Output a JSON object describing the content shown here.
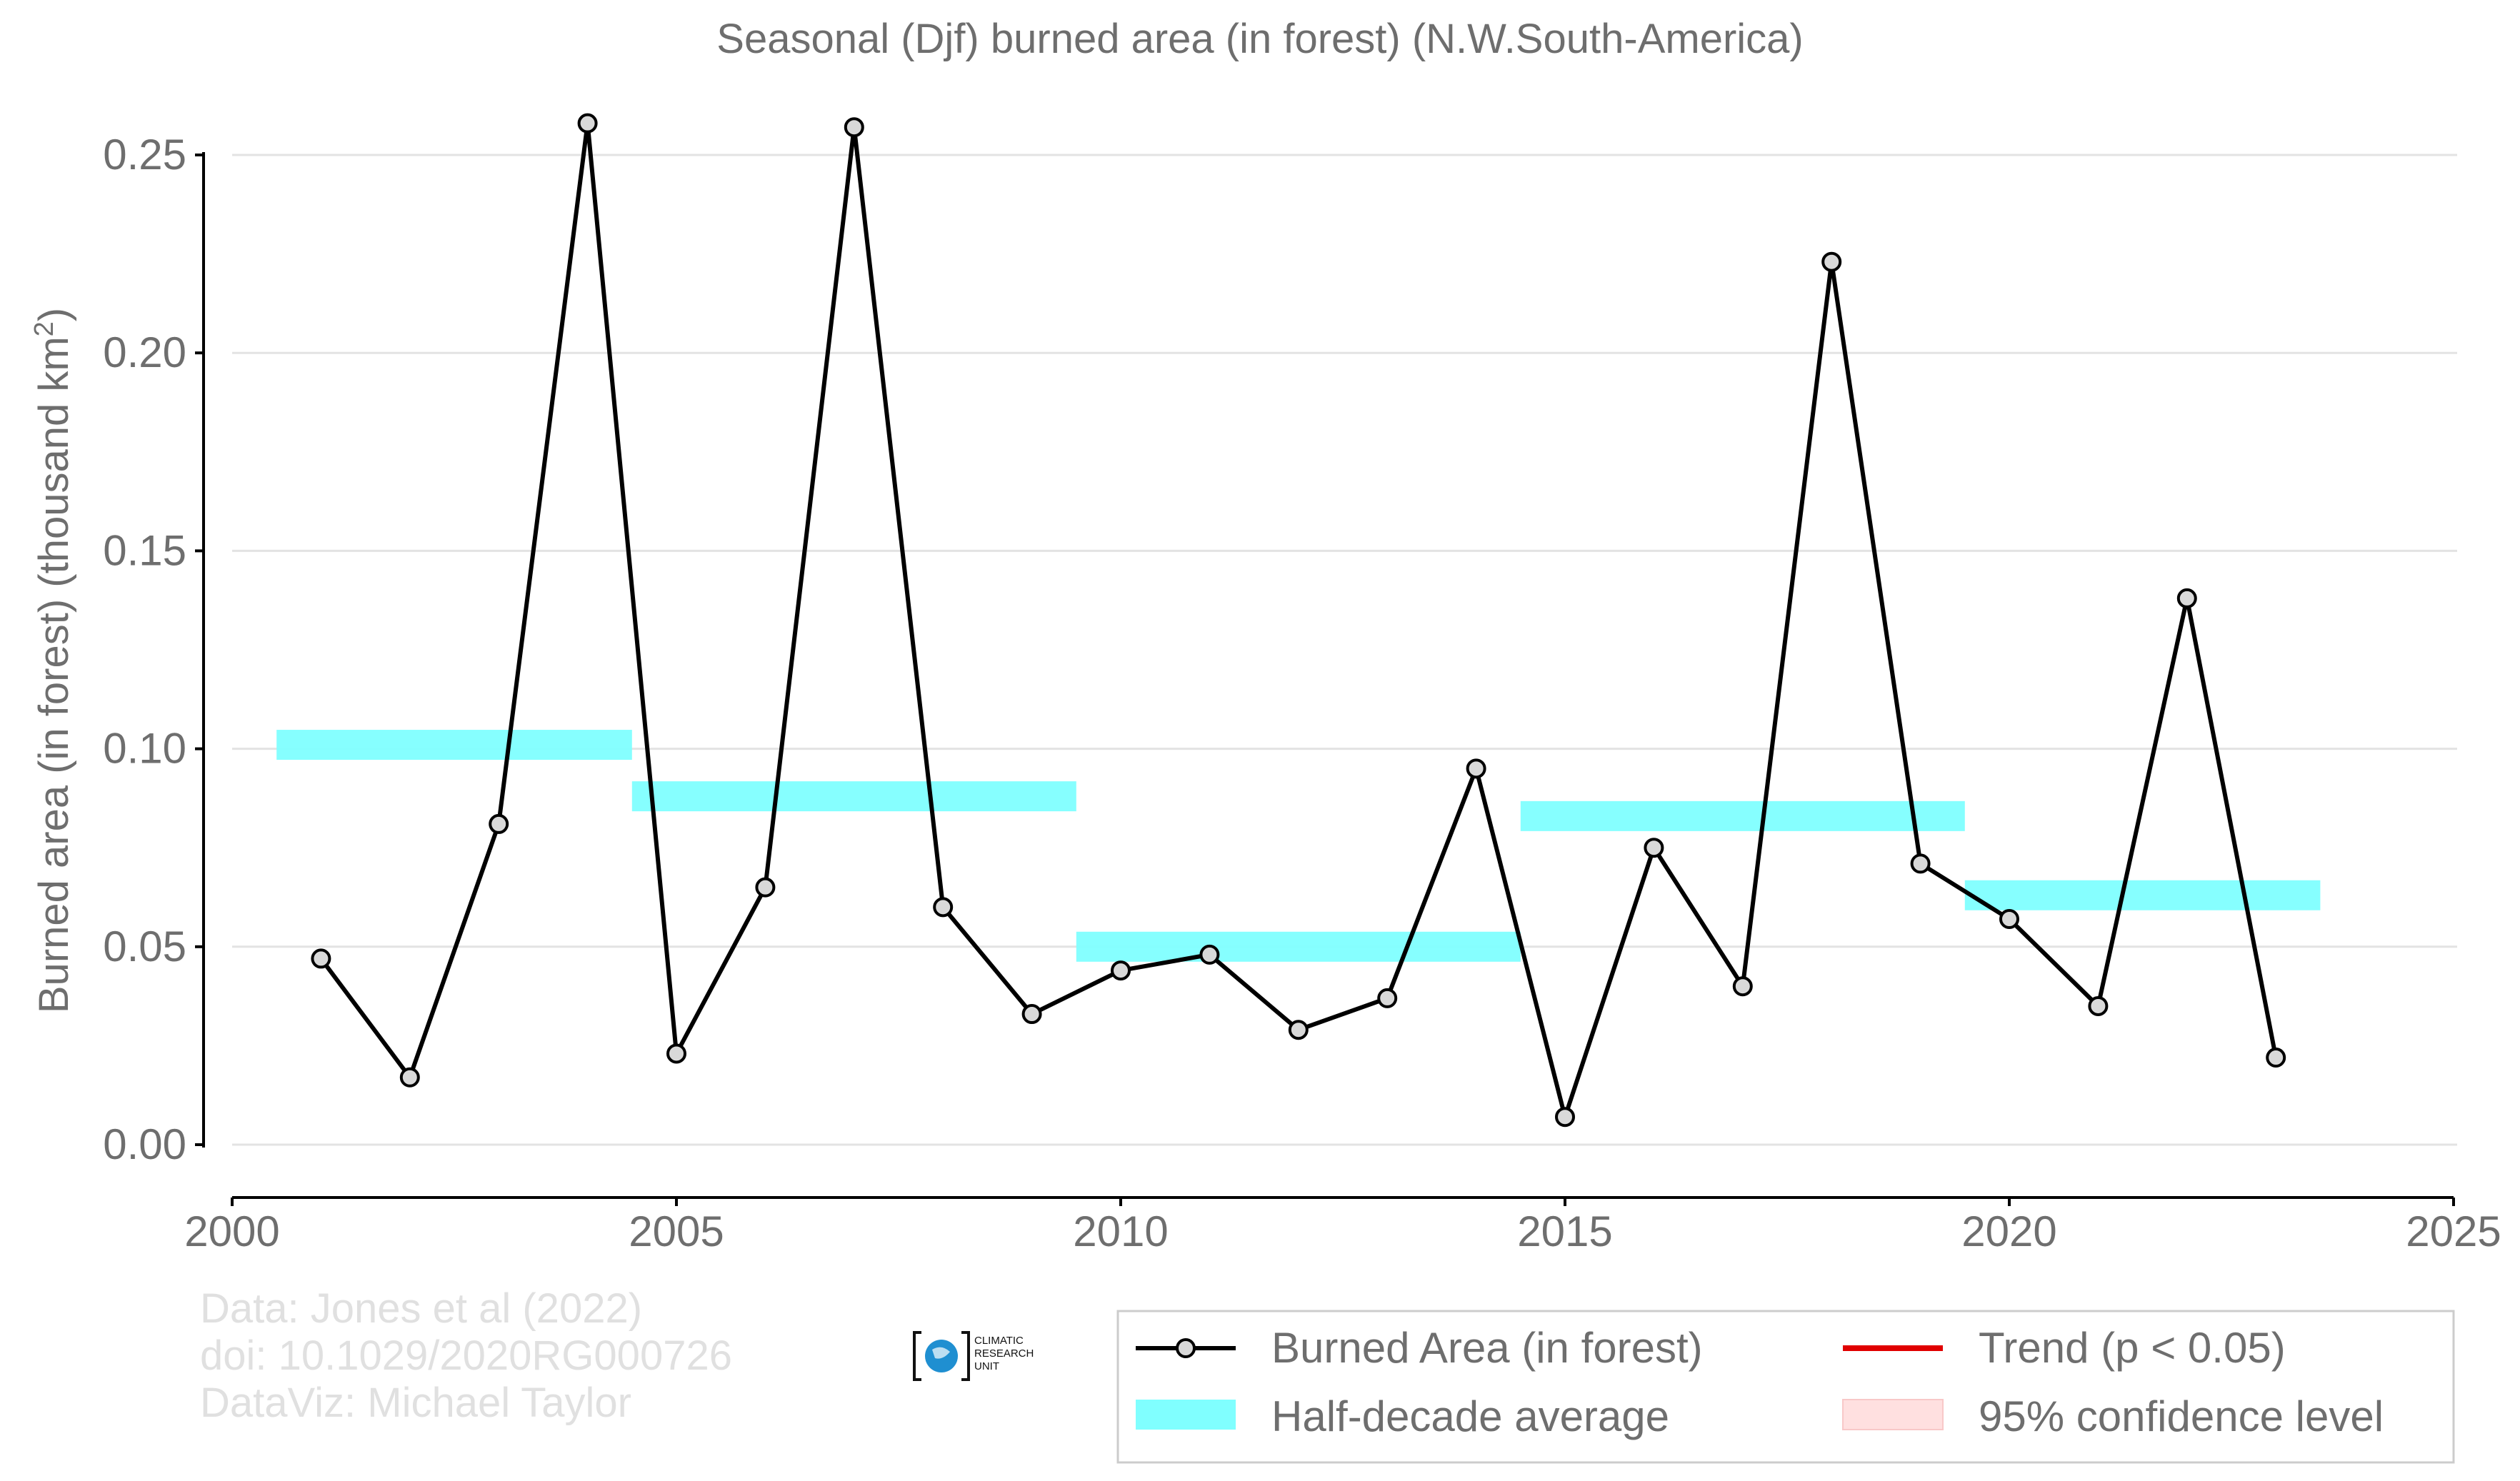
{
  "chart_data": {
    "type": "line",
    "title": "Seasonal (Djf) burned area (in forest) (N.W.South-America)",
    "ylabel": "Burned area (in forest) (thousand km",
    "ylabel_superscript": "2",
    "ylabel_suffix": ")",
    "xlabel": "",
    "xlim": [
      2000,
      2025
    ],
    "ylim": [
      0,
      0.25
    ],
    "x_ticks": [
      2000,
      2005,
      2010,
      2015,
      2020,
      2025
    ],
    "y_ticks": [
      0.0,
      0.05,
      0.1,
      0.15,
      0.2,
      0.25
    ],
    "y_tick_labels": [
      "0.00",
      "0.05",
      "0.10",
      "0.15",
      "0.20",
      "0.25"
    ],
    "grid": "horizontal",
    "series": [
      {
        "name": "Burned Area (in forest)",
        "color": "#000000",
        "marker_fill": "#d9d9d9",
        "x": [
          2001,
          2002,
          2003,
          2004,
          2005,
          2006,
          2007,
          2008,
          2009,
          2010,
          2011,
          2012,
          2013,
          2014,
          2015,
          2016,
          2017,
          2018,
          2019,
          2020,
          2021,
          2022,
          2023
        ],
        "values": [
          0.047,
          0.017,
          0.081,
          0.258,
          0.023,
          0.065,
          0.257,
          0.06,
          0.033,
          0.044,
          0.048,
          0.029,
          0.037,
          0.095,
          0.007,
          0.075,
          0.04,
          0.223,
          0.071,
          0.057,
          0.035,
          0.138,
          0.022
        ]
      }
    ],
    "half_decade_averages": {
      "name": "Half-decade average",
      "color": "#80ffff",
      "segments": [
        {
          "start": 2000.5,
          "end": 2004.5,
          "value": 0.101
        },
        {
          "start": 2004.5,
          "end": 2009.5,
          "value": 0.088
        },
        {
          "start": 2009.5,
          "end": 2014.5,
          "value": 0.05
        },
        {
          "start": 2014.5,
          "end": 2019.5,
          "value": 0.083
        },
        {
          "start": 2019.5,
          "end": 2023.5,
          "value": 0.063
        }
      ]
    },
    "legend": {
      "position": "bottom-right",
      "entries": [
        {
          "label": "Burned Area (in forest)",
          "kind": "line-marker",
          "color": "#000000"
        },
        {
          "label": "Trend (p < 0.05)",
          "kind": "line",
          "color": "#e00000"
        },
        {
          "label": "Half-decade average",
          "kind": "band",
          "color": "#80ffff"
        },
        {
          "label": "95% confidence level",
          "kind": "band",
          "color": "#ffe0e0"
        }
      ]
    },
    "credits": [
      "Data: Jones et al (2022)",
      "doi: 10.1029/2020RG000726",
      "DataViz: Michael Taylor"
    ],
    "logo_text": [
      "CLIMATIC",
      "RESEARCH",
      "UNIT"
    ]
  }
}
